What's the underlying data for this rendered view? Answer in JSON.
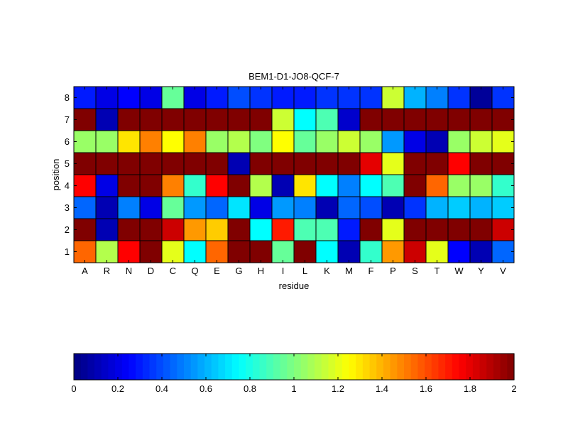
{
  "chart_data": {
    "type": "heatmap",
    "title": "BEM1-D1-JO8-QCF-7",
    "xlabel": "residue",
    "ylabel": "position",
    "x_categories": [
      "A",
      "R",
      "N",
      "D",
      "C",
      "Q",
      "E",
      "G",
      "H",
      "I",
      "L",
      "K",
      "M",
      "F",
      "P",
      "S",
      "T",
      "W",
      "Y",
      "V"
    ],
    "y_categories": [
      "1",
      "2",
      "3",
      "4",
      "5",
      "6",
      "7",
      "8"
    ],
    "values": [
      [
        1.55,
        1.1,
        1.75,
        2.0,
        1.2,
        0.75,
        1.55,
        2.0,
        2.0,
        0.95,
        2.0,
        0.75,
        0.1,
        0.85,
        1.45,
        1.85,
        1.2,
        0.25,
        0.1,
        0.45
      ],
      [
        2.0,
        0.1,
        2.0,
        2.0,
        1.85,
        1.45,
        1.35,
        2.0,
        0.75,
        1.7,
        0.9,
        0.9,
        0.3,
        2.0,
        1.2,
        2.0,
        2.0,
        2.0,
        2.0,
        1.85
      ],
      [
        0.45,
        0.1,
        0.5,
        0.2,
        0.95,
        0.55,
        0.45,
        0.7,
        0.2,
        0.55,
        0.5,
        0.1,
        0.45,
        0.4,
        0.1,
        0.35,
        0.6,
        0.65,
        0.6,
        0.65
      ],
      [
        1.75,
        0.2,
        2.0,
        2.0,
        1.5,
        0.85,
        1.75,
        2.0,
        1.1,
        0.1,
        1.3,
        0.75,
        0.5,
        0.75,
        0.9,
        2.0,
        1.55,
        1.05,
        1.05,
        0.85
      ],
      [
        2.0,
        2.0,
        2.0,
        2.0,
        2.0,
        2.0,
        2.0,
        0.1,
        2.0,
        2.0,
        2.0,
        2.0,
        2.0,
        1.8,
        1.2,
        2.0,
        2.0,
        1.75,
        2.0,
        2.0
      ],
      [
        1.05,
        1.05,
        1.3,
        1.5,
        1.25,
        1.5,
        1.05,
        1.1,
        1.0,
        1.25,
        0.95,
        1.05,
        1.15,
        1.05,
        0.55,
        0.2,
        0.1,
        1.05,
        1.15,
        1.2
      ],
      [
        2.0,
        0.1,
        2.0,
        2.0,
        2.0,
        2.0,
        2.0,
        2.0,
        2.0,
        1.15,
        0.75,
        0.9,
        0.15,
        2.0,
        2.0,
        2.0,
        2.0,
        2.0,
        2.0,
        2.0
      ],
      [
        0.3,
        0.2,
        0.25,
        0.2,
        0.95,
        0.2,
        0.3,
        0.4,
        0.35,
        0.3,
        0.3,
        0.35,
        0.35,
        0.35,
        1.15,
        0.6,
        0.5,
        0.35,
        0.05,
        0.35
      ]
    ],
    "colorbar": {
      "colormap": "jet",
      "range": [
        0,
        2
      ],
      "ticks": [
        "0",
        "0.2",
        "0.4",
        "0.6",
        "0.8",
        "1",
        "1.2",
        "1.4",
        "1.6",
        "1.8",
        "2"
      ]
    }
  }
}
